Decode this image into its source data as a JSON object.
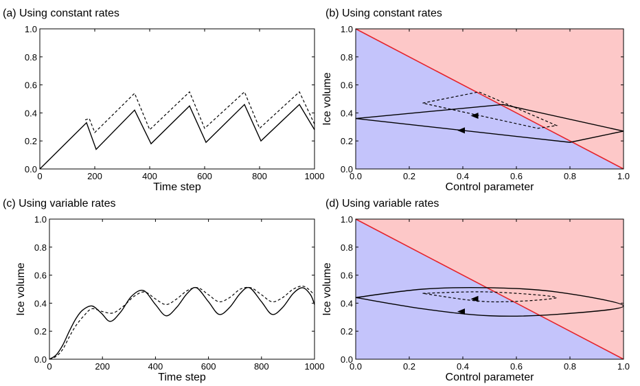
{
  "chart_data": [
    {
      "panel": "a",
      "type": "line",
      "title": "(a) Using constant rates",
      "xlabel": "Time step",
      "ylabel": "",
      "xlim": [
        0,
        1000
      ],
      "ylim": [
        0,
        1.0
      ],
      "xticks": [
        "0",
        "200",
        "400",
        "600",
        "800",
        "1000"
      ],
      "yticks": [
        "0.0",
        "0.2",
        "0.4",
        "0.6",
        "0.8",
        "1.0"
      ],
      "series": [
        {
          "style": "solid",
          "x": [
            0,
            170,
            205,
            345,
            405,
            545,
            605,
            745,
            805,
            945,
            1000
          ],
          "y": [
            0,
            0.33,
            0.14,
            0.42,
            0.18,
            0.45,
            0.19,
            0.46,
            0.2,
            0.46,
            0.28
          ]
        },
        {
          "style": "dashed",
          "x": [
            165,
            180,
            200,
            345,
            400,
            545,
            600,
            745,
            800,
            945,
            1000
          ],
          "y": [
            0.35,
            0.36,
            0.26,
            0.54,
            0.28,
            0.55,
            0.29,
            0.55,
            0.29,
            0.55,
            0.32
          ]
        }
      ]
    },
    {
      "panel": "b",
      "type": "line",
      "title": "(b) Using constant rates",
      "xlabel": "Control parameter",
      "ylabel": "Ice volume",
      "xlim": [
        0,
        1.0
      ],
      "ylim": [
        0,
        1.0
      ],
      "xticks": [
        "0.0",
        "0.2",
        "0.4",
        "0.6",
        "0.8",
        "1.0"
      ],
      "yticks": [
        "0.0",
        "0.2",
        "0.4",
        "0.6",
        "0.8",
        "1.0"
      ],
      "regions": {
        "below_line_color": "#c4c4fb",
        "above_line_color": "#fdc8c8",
        "boundary_color": "#e5232b"
      },
      "boundary_line": {
        "x": [
          0,
          1
        ],
        "y": [
          1,
          0
        ]
      },
      "series": [
        {
          "style": "solid",
          "x": [
            0,
            0.55,
            1.0,
            0.8,
            0
          ],
          "y": [
            0.36,
            0.46,
            0.27,
            0.19,
            0.36
          ],
          "arrow_at": [
            0.4,
            0.275
          ]
        },
        {
          "style": "dashed",
          "x": [
            0.25,
            0.46,
            0.75,
            0.68,
            0.25
          ],
          "y": [
            0.47,
            0.55,
            0.31,
            0.29,
            0.47
          ],
          "arrow_at": [
            0.45,
            0.38
          ]
        }
      ]
    },
    {
      "panel": "c",
      "type": "line",
      "title": "(c) Using variable rates",
      "xlabel": "Time step",
      "ylabel": "Ice volume",
      "xlim": [
        0,
        1000
      ],
      "ylim": [
        0,
        1.0
      ],
      "xticks": [
        "0",
        "200",
        "400",
        "600",
        "800",
        "1000"
      ],
      "yticks": [
        "0.0",
        "0.2",
        "0.4",
        "0.6",
        "0.8",
        "1.0"
      ],
      "series": [
        {
          "style": "solid",
          "x": [
            0,
            25,
            50,
            75,
            100,
            125,
            160,
            195,
            230,
            270,
            310,
            355,
            400,
            440,
            480,
            520,
            555,
            600,
            640,
            680,
            720,
            755,
            800,
            840,
            880,
            920,
            955,
            985,
            1000
          ],
          "y": [
            0.0,
            0.03,
            0.1,
            0.2,
            0.29,
            0.35,
            0.38,
            0.33,
            0.27,
            0.34,
            0.45,
            0.49,
            0.39,
            0.31,
            0.37,
            0.47,
            0.51,
            0.41,
            0.32,
            0.37,
            0.47,
            0.51,
            0.41,
            0.32,
            0.37,
            0.47,
            0.51,
            0.46,
            0.39
          ]
        },
        {
          "style": "dashed",
          "x": [
            0,
            25,
            50,
            75,
            100,
            130,
            160,
            200,
            240,
            280,
            320,
            360,
            400,
            440,
            480,
            520,
            560,
            600,
            640,
            680,
            720,
            760,
            800,
            840,
            880,
            920,
            960,
            1000
          ],
          "y": [
            0.0,
            0.02,
            0.07,
            0.16,
            0.24,
            0.31,
            0.36,
            0.34,
            0.33,
            0.38,
            0.45,
            0.48,
            0.43,
            0.39,
            0.43,
            0.49,
            0.51,
            0.46,
            0.41,
            0.44,
            0.5,
            0.51,
            0.46,
            0.41,
            0.44,
            0.5,
            0.52,
            0.46
          ]
        }
      ]
    },
    {
      "panel": "d",
      "type": "line",
      "title": "(d) Using variable rates",
      "xlabel": "Control parameter",
      "ylabel": "Ice volume",
      "xlim": [
        0,
        1.0
      ],
      "ylim": [
        0,
        1.0
      ],
      "xticks": [
        "0.0",
        "0.2",
        "0.4",
        "0.6",
        "0.8",
        "1.0"
      ],
      "yticks": [
        "0.0",
        "0.2",
        "0.4",
        "0.6",
        "0.8",
        "1.0"
      ],
      "regions": {
        "below_line_color": "#c4c4fb",
        "above_line_color": "#fdc8c8",
        "boundary_color": "#e5232b"
      },
      "boundary_line": {
        "x": [
          0,
          1
        ],
        "y": [
          1,
          0
        ]
      },
      "series": [
        {
          "style": "solid",
          "x": [
            0,
            0.25,
            0.5,
            0.75,
            1.0,
            0.75,
            0.5,
            0.25,
            0
          ],
          "y": [
            0.44,
            0.5,
            0.51,
            0.48,
            0.38,
            0.32,
            0.31,
            0.36,
            0.44
          ],
          "arrow_at": [
            0.4,
            0.34
          ]
        },
        {
          "style": "dashed",
          "x": [
            0.25,
            0.5,
            0.75,
            0.5,
            0.25
          ],
          "y": [
            0.47,
            0.48,
            0.44,
            0.41,
            0.47
          ],
          "arrow_at": [
            0.45,
            0.43
          ]
        }
      ]
    }
  ]
}
